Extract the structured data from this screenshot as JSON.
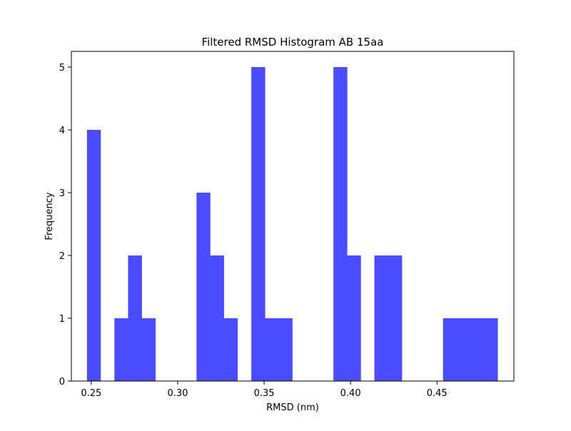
{
  "chart_data": {
    "type": "bar",
    "title": "Filtered RMSD Histogram AB 15aa",
    "xlabel": "RMSD (nm)",
    "ylabel": "Frequency",
    "xlim": [
      0.2385,
      0.4945
    ],
    "ylim": [
      0,
      5.25
    ],
    "x_ticks": [
      0.25,
      0.3,
      0.35,
      0.4,
      0.45
    ],
    "x_tick_labels": [
      "0.25",
      "0.30",
      "0.35",
      "0.40",
      "0.45"
    ],
    "y_ticks": [
      0,
      1,
      2,
      3,
      4,
      5
    ],
    "y_tick_labels": [
      "0",
      "1",
      "2",
      "3",
      "4",
      "5"
    ],
    "bin_width": 0.0079,
    "bins": [
      {
        "x": 0.2475,
        "count": 4
      },
      {
        "x": 0.2634,
        "count": 1
      },
      {
        "x": 0.2713,
        "count": 2
      },
      {
        "x": 0.2792,
        "count": 1
      },
      {
        "x": 0.3109,
        "count": 3
      },
      {
        "x": 0.3188,
        "count": 2
      },
      {
        "x": 0.3267,
        "count": 1
      },
      {
        "x": 0.3426,
        "count": 5
      },
      {
        "x": 0.3505,
        "count": 1
      },
      {
        "x": 0.3584,
        "count": 1
      },
      {
        "x": 0.3901,
        "count": 5
      },
      {
        "x": 0.398,
        "count": 2
      },
      {
        "x": 0.4138,
        "count": 2
      },
      {
        "x": 0.4218,
        "count": 2
      },
      {
        "x": 0.4535,
        "count": 1
      },
      {
        "x": 0.4614,
        "count": 1
      },
      {
        "x": 0.4693,
        "count": 1
      },
      {
        "x": 0.4772,
        "count": 1
      }
    ],
    "bar_color": "#4b4bff",
    "grid": false,
    "legend": "none"
  }
}
